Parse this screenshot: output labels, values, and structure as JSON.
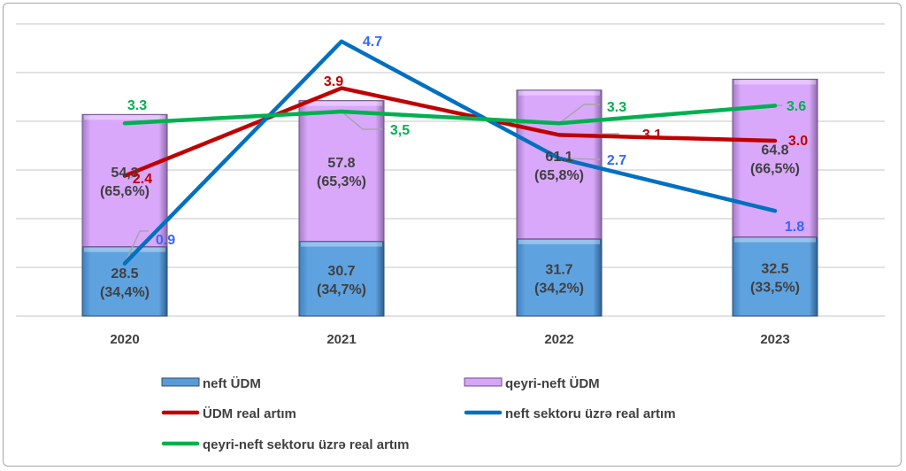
{
  "chart_data": {
    "type": "bar+line",
    "title": "",
    "categories": [
      "2020",
      "2021",
      "2022",
      "2023"
    ],
    "bar_axis": {
      "ylim": [
        0,
        120
      ],
      "gridlines": 20,
      "visible_ticks": false
    },
    "line_axis": {
      "ylim": [
        0,
        5
      ],
      "visible_ticks": false
    },
    "bar_series": [
      {
        "name": "neft ÜDM",
        "color": "#5b9bd5",
        "values": [
          28.5,
          30.7,
          31.7,
          32.5
        ],
        "labels": [
          [
            "28.5",
            "(34,4%)"
          ],
          [
            "30.7",
            "(34,7%)"
          ],
          [
            "31.7",
            "(34,2%)"
          ],
          [
            "32.5",
            "(33,5%)"
          ]
        ]
      },
      {
        "name": "qeyri-neft ÜDM",
        "color": "#d5a6f5",
        "values": [
          54.3,
          57.8,
          61.1,
          64.8
        ],
        "labels": [
          [
            "54,3",
            "(65,6%)"
          ],
          [
            "57.8",
            "(65,3%)"
          ],
          [
            "61.1",
            "(65,8%)"
          ],
          [
            "64.8",
            "(66,5%)"
          ]
        ]
      }
    ],
    "line_series": [
      {
        "name": "ÜDM real artım",
        "color": "#c00000",
        "label_color": "#c00000",
        "values": [
          2.4,
          3.9,
          3.1,
          3.0
        ],
        "labels": [
          "2.4",
          "3.9",
          "3.1",
          "3.0"
        ]
      },
      {
        "name": "neft sektoru üzrə real artım",
        "color": "#0070c0",
        "label_color": "#3366ff",
        "values": [
          0.9,
          4.7,
          2.7,
          1.8
        ],
        "labels": [
          "0.9",
          "4.7",
          "2.7",
          "1.8"
        ]
      },
      {
        "name": "qeyri-neft sektoru üzrə real artım",
        "color": "#00b050",
        "label_color": "#00b050",
        "values": [
          3.3,
          3.5,
          3.3,
          3.6
        ],
        "labels": [
          "3.3",
          "3,5",
          "3.3",
          "3.6"
        ]
      }
    ],
    "legend": "bottom"
  }
}
